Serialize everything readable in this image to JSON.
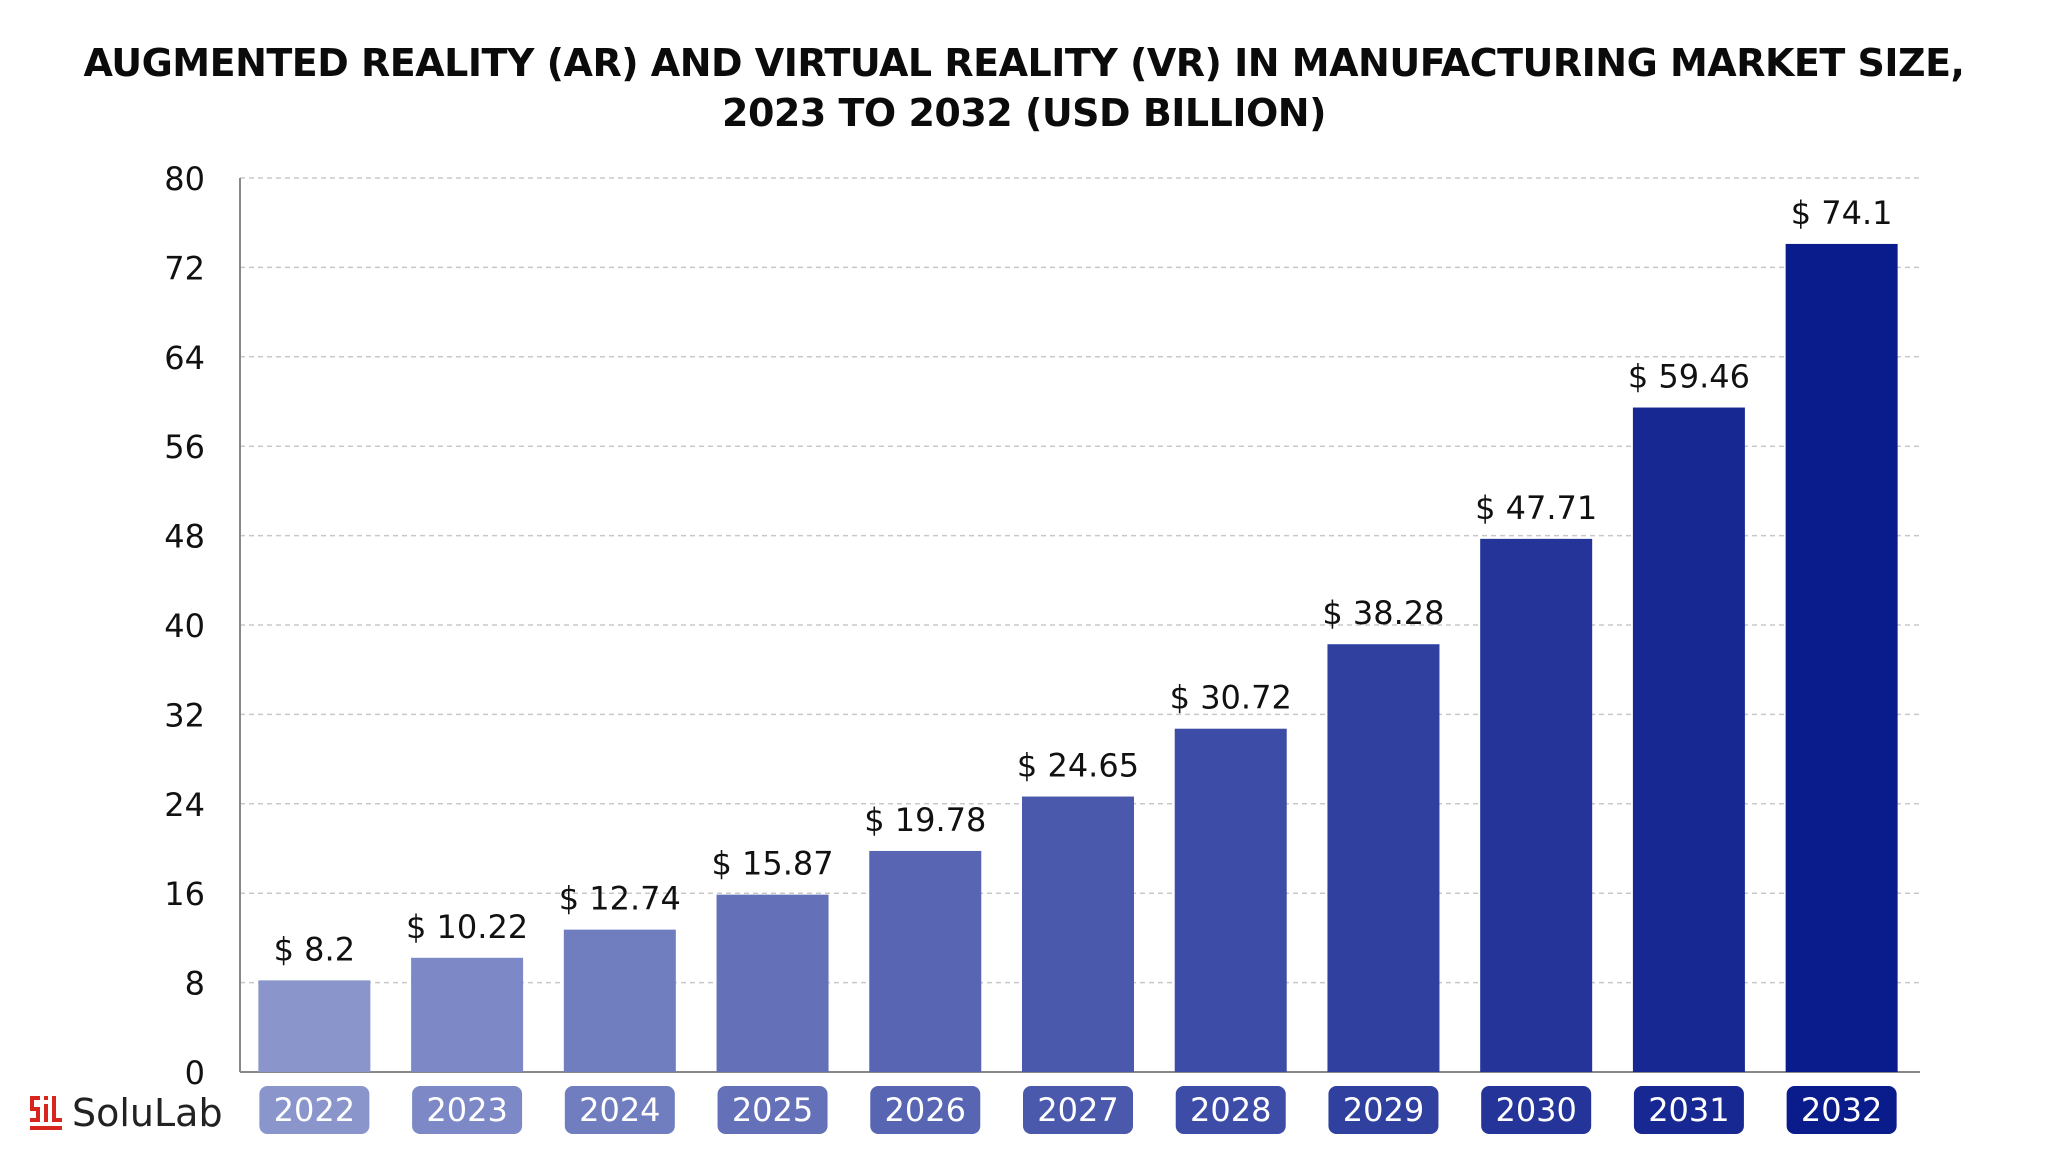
{
  "title_lines": [
    "AUGMENTED REALITY (AR) AND VIRTUAL REALITY (VR) IN MANUFACTURING MARKET SIZE,",
    "2023 TO 2032 (USD BILLION)"
  ],
  "brand": {
    "name": "SoluLab",
    "logo_icon": "solulab-logo-icon"
  },
  "colors": {
    "bar_start": "#8a95cc",
    "bar_end": "#0a1c8c",
    "grid": "#c8c8c8",
    "axis": "#888888",
    "text": "#111111",
    "pill_text": "#ffffff",
    "brand_red": "#d7261e"
  },
  "chart_data": {
    "type": "bar",
    "categories": [
      "2022",
      "2023",
      "2024",
      "2025",
      "2026",
      "2027",
      "2028",
      "2029",
      "2030",
      "2031",
      "2032"
    ],
    "values": [
      8.2,
      10.22,
      12.74,
      15.87,
      19.78,
      24.65,
      30.72,
      38.28,
      47.71,
      59.46,
      74.1
    ],
    "data_labels": [
      "$ 8.2",
      "$ 10.22",
      "$ 12.74",
      "$ 15.87",
      "$ 19.78",
      "$ 24.65",
      "$ 30.72",
      "$ 38.28",
      "$ 47.71",
      "$ 59.46",
      "$ 74.1"
    ],
    "title": "AUGMENTED REALITY (AR) AND VIRTUAL REALITY (VR) IN MANUFACTURING MARKET SIZE, 2023 TO 2032 (USD BILLION)",
    "xlabel": "",
    "ylabel": "",
    "ylim": [
      0,
      80
    ],
    "yticks": [
      0,
      8,
      16,
      24,
      32,
      40,
      48,
      56,
      64,
      72,
      80
    ],
    "grid": true,
    "grid_style": "dashed",
    "legend": false
  }
}
